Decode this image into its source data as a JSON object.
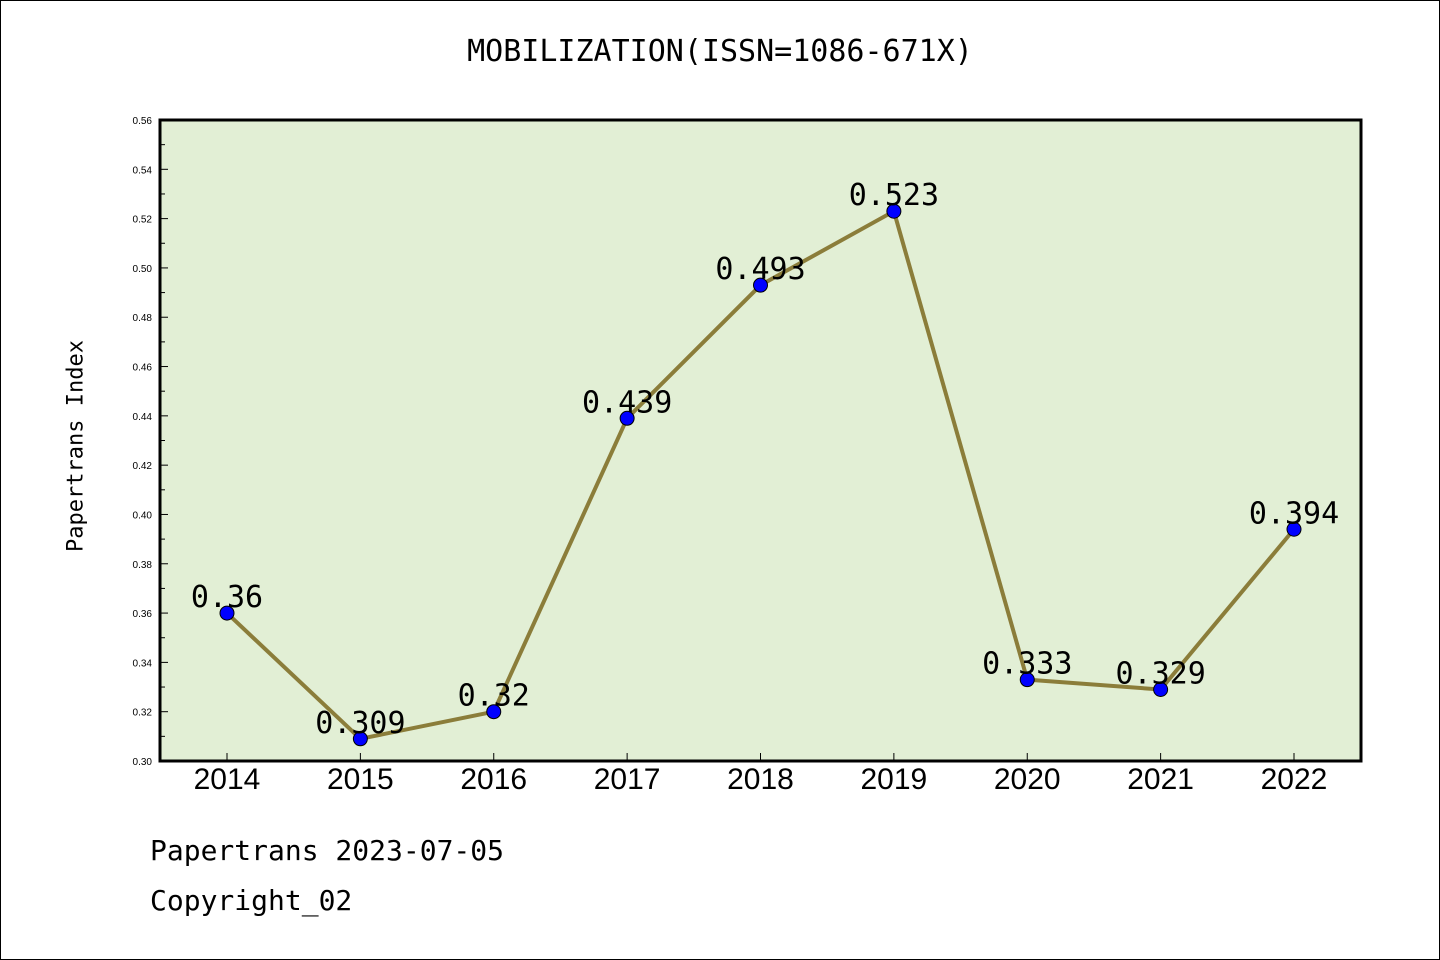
{
  "chart_data": {
    "type": "line",
    "title": "MOBILIZATION(ISSN=1086-671X)",
    "ylabel": "Papertrans Index",
    "xlabel": "",
    "x": [
      "2014",
      "2015",
      "2016",
      "2017",
      "2018",
      "2019",
      "2020",
      "2021",
      "2022"
    ],
    "values": [
      0.36,
      0.309,
      0.32,
      0.439,
      0.493,
      0.523,
      0.333,
      0.329,
      0.394
    ],
    "data_labels": [
      "0.36",
      "0.309",
      "0.32",
      "0.439",
      "0.493",
      "0.523",
      "0.333",
      "0.329",
      "0.394"
    ],
    "ylim": [
      0.3,
      0.56
    ],
    "yticks": [
      "0.30",
      "0.32",
      "0.34",
      "0.36",
      "0.38",
      "0.40",
      "0.42",
      "0.44",
      "0.46",
      "0.48",
      "0.50",
      "0.52",
      "0.54",
      "0.56"
    ],
    "grid": false,
    "colors": {
      "plot_background": "#e2efd5",
      "line": "#8b7d3a",
      "marker": "#0000ff"
    }
  },
  "footer": {
    "date_line": "Papertrans 2023-07-05",
    "copyright": "Copyright_02"
  }
}
